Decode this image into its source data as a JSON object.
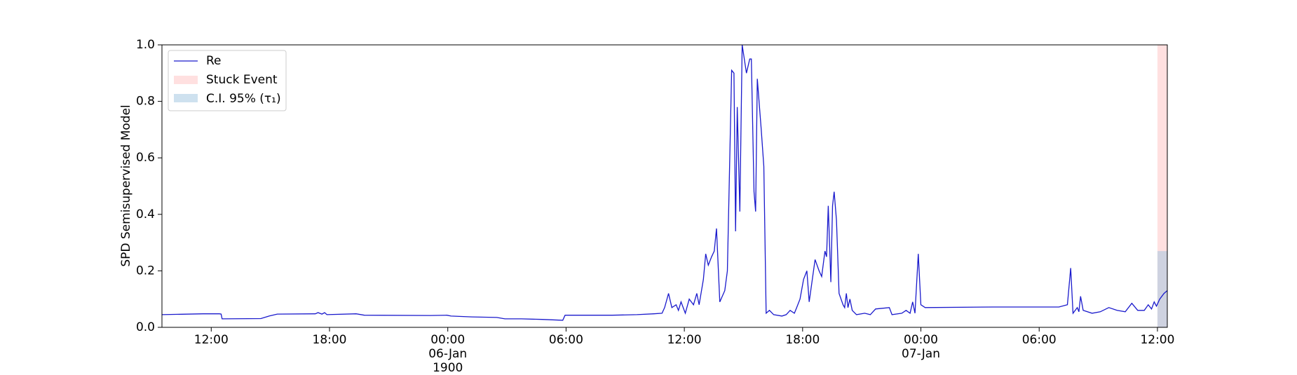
{
  "chart_data": {
    "type": "line",
    "ylabel": "SPD Semisupervised Model",
    "xlim": [
      "1900-01-05T09:30",
      "1900-01-07T12:30"
    ],
    "ylim": [
      0,
      1
    ],
    "yticks": [
      {
        "value": 0,
        "label": "0.0"
      },
      0.2,
      0.4,
      0.6,
      0.8,
      {
        "value": 1,
        "label": "1.0"
      }
    ],
    "xticks": [
      {
        "value": "1900-01-05T12:00",
        "label": "12:00"
      },
      {
        "value": "1900-01-05T18:00",
        "label": "18:00"
      },
      {
        "value": "1900-01-06T00:00",
        "label": "00:00\n06-Jan\n1900"
      },
      {
        "value": "1900-01-06T06:00",
        "label": "06:00"
      },
      {
        "value": "1900-01-06T12:00",
        "label": "12:00"
      },
      {
        "value": "1900-01-06T18:00",
        "label": "18:00"
      },
      {
        "value": "1900-01-07T00:00",
        "label": "00:00\n07-Jan"
      },
      {
        "value": "1900-01-07T06:00",
        "label": "06:00"
      },
      {
        "value": "1900-01-07T12:00",
        "label": "12:00"
      }
    ],
    "legend": "upper left",
    "series": [
      {
        "name": "Re",
        "color": "#1a1acc",
        "x": [
          "1900-01-05T09:30",
          "1900-01-05T11:35",
          "1900-01-05T12:25",
          "1900-01-05T12:30",
          "1900-01-05T12:33",
          "1900-01-05T14:31",
          "1900-01-05T14:56",
          "1900-01-05T15:21",
          "1900-01-05T17:17",
          "1900-01-05T17:25",
          "1900-01-05T17:37",
          "1900-01-05T17:45",
          "1900-01-05T17:52",
          "1900-01-05T19:21",
          "1900-01-05T19:46",
          "1900-01-05T23:07",
          "1900-01-05T23:57",
          "1900-01-06T00:10",
          "1900-01-06T01:13",
          "1900-01-06T02:29",
          "1900-01-06T02:54",
          "1900-01-06T03:44",
          "1900-01-06T04:47",
          "1900-01-06T05:50",
          "1900-01-06T05:57",
          "1900-01-06T08:21",
          "1900-01-06T09:36",
          "1900-01-06T10:27",
          "1900-01-06T10:52",
          "1900-01-06T11:00",
          "1900-01-06T11:12",
          "1900-01-06T11:22",
          "1900-01-06T11:35",
          "1900-01-06T11:42",
          "1900-01-06T11:50",
          "1900-01-06T12:03",
          "1900-01-06T12:15",
          "1900-01-06T12:28",
          "1900-01-06T12:38",
          "1900-01-06T12:45",
          "1900-01-06T12:58",
          "1900-01-06T13:05",
          "1900-01-06T13:13",
          "1900-01-06T13:23",
          "1900-01-06T13:31",
          "1900-01-06T13:38",
          "1900-01-06T13:48",
          "1900-01-06T14:03",
          "1900-01-06T14:11",
          "1900-01-06T14:24",
          "1900-01-06T14:31",
          "1900-01-06T14:36",
          "1900-01-06T14:41",
          "1900-01-06T14:49",
          "1900-01-06T14:56",
          "1900-01-06T15:09",
          "1900-01-06T15:19",
          "1900-01-06T15:24",
          "1900-01-06T15:32",
          "1900-01-06T15:37",
          "1900-01-06T15:42",
          "1900-01-06T15:54",
          "1900-01-06T16:02",
          "1900-01-06T16:09",
          "1900-01-06T16:19",
          "1900-01-06T16:32",
          "1900-01-06T16:57",
          "1900-01-06T17:10",
          "1900-01-06T17:22",
          "1900-01-06T17:35",
          "1900-01-06T17:42",
          "1900-01-06T17:52",
          "1900-01-06T18:03",
          "1900-01-06T18:13",
          "1900-01-06T18:20",
          "1900-01-06T18:38",
          "1900-01-06T18:50",
          "1900-01-06T18:58",
          "1900-01-06T19:08",
          "1900-01-06T19:13",
          "1900-01-06T19:18",
          "1900-01-06T19:26",
          "1900-01-06T19:31",
          "1900-01-06T19:36",
          "1900-01-06T19:43",
          "1900-01-06T19:51",
          "1900-01-06T20:03",
          "1900-01-06T20:08",
          "1900-01-06T20:13",
          "1900-01-06T20:18",
          "1900-01-06T20:24",
          "1900-01-06T20:31",
          "1900-01-06T20:44",
          "1900-01-06T21:09",
          "1900-01-06T21:26",
          "1900-01-06T21:42",
          "1900-01-06T22:24",
          "1900-01-06T22:32",
          "1900-01-06T23:02",
          "1900-01-06T23:15",
          "1900-01-06T23:27",
          "1900-01-06T23:35",
          "1900-01-06T23:42",
          "1900-01-06T23:52",
          "1900-01-07T00:00",
          "1900-01-07T00:13",
          "1900-01-07T03:39",
          "1900-01-07T07:00",
          "1900-01-07T07:26",
          "1900-01-07T07:36",
          "1900-01-07T07:43",
          "1900-01-07T07:56",
          "1900-01-07T08:01",
          "1900-01-07T08:06",
          "1900-01-07T08:14",
          "1900-01-07T08:41",
          "1900-01-07T09:06",
          "1900-01-07T09:32",
          "1900-01-07T09:57",
          "1900-01-07T10:22",
          "1900-01-07T10:42",
          "1900-01-07T11:00",
          "1900-01-07T11:20",
          "1900-01-07T11:32",
          "1900-01-07T11:42",
          "1900-01-07T11:50",
          "1900-01-07T11:57",
          "1900-01-07T12:07",
          "1900-01-07T12:20",
          "1900-01-07T12:30"
        ],
        "values": [
          0.045,
          0.048,
          0.048,
          0.047,
          0.03,
          0.031,
          0.04,
          0.047,
          0.048,
          0.052,
          0.047,
          0.052,
          0.045,
          0.048,
          0.043,
          0.042,
          0.043,
          0.04,
          0.037,
          0.035,
          0.03,
          0.03,
          0.028,
          0.025,
          0.043,
          0.043,
          0.045,
          0.048,
          0.05,
          0.07,
          0.12,
          0.07,
          0.08,
          0.06,
          0.09,
          0.05,
          0.1,
          0.08,
          0.12,
          0.08,
          0.17,
          0.26,
          0.22,
          0.25,
          0.27,
          0.35,
          0.09,
          0.13,
          0.2,
          0.91,
          0.9,
          0.34,
          0.78,
          0.41,
          1.0,
          0.9,
          0.95,
          0.95,
          0.48,
          0.41,
          0.88,
          0.7,
          0.57,
          0.05,
          0.06,
          0.045,
          0.04,
          0.045,
          0.06,
          0.05,
          0.07,
          0.1,
          0.17,
          0.2,
          0.09,
          0.24,
          0.2,
          0.18,
          0.27,
          0.25,
          0.43,
          0.16,
          0.43,
          0.48,
          0.38,
          0.12,
          0.08,
          0.07,
          0.12,
          0.07,
          0.1,
          0.06,
          0.045,
          0.05,
          0.045,
          0.065,
          0.07,
          0.045,
          0.05,
          0.06,
          0.05,
          0.09,
          0.05,
          0.26,
          0.08,
          0.07,
          0.072,
          0.072,
          0.08,
          0.21,
          0.05,
          0.07,
          0.055,
          0.11,
          0.06,
          0.05,
          0.055,
          0.07,
          0.06,
          0.055,
          0.085,
          0.06,
          0.06,
          0.08,
          0.065,
          0.09,
          0.075,
          0.1,
          0.12,
          0.13
        ]
      }
    ],
    "stuck_event": {
      "name": "Stuck Event",
      "color": "#ffcccc",
      "start": "1900-01-07T12:00",
      "end": "1900-01-07T12:30"
    },
    "ci_band": {
      "name": "C.I. 95% (τ₁)",
      "color": "#9ec4e0",
      "start": "1900-01-07T12:00",
      "end": "1900-01-07T12:30",
      "lower": 0,
      "upper": 0.27
    }
  }
}
